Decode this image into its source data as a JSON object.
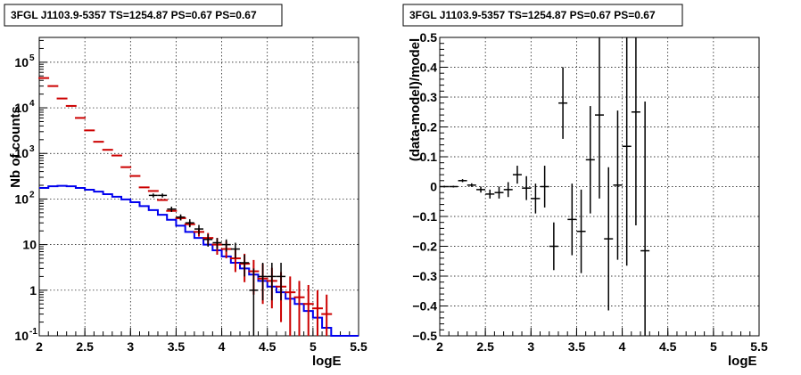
{
  "colors": {
    "data": "#000000",
    "model_errors": "#cc0000",
    "model_line": "#0000ee",
    "grid": "#000000"
  },
  "chart_data": [
    {
      "type": "line",
      "title": "3FGL J1103.9-5357 TS=1254.87 PS=0.67 PS=0.67",
      "xlabel": "logE",
      "ylabel": "Nb of counts",
      "xlim": [
        2,
        5.5
      ],
      "ylim": [
        0.1,
        350000
      ],
      "yscale": "log",
      "grid": true,
      "xticks": [
        "2",
        "2.5",
        "3",
        "3.5",
        "4",
        "4.5",
        "5",
        "5.5"
      ],
      "yticks": [
        {
          "value": 0.1,
          "label": "10",
          "exp": "-1"
        },
        {
          "value": 1,
          "label": "1",
          "exp": ""
        },
        {
          "value": 10,
          "label": "10",
          "exp": ""
        },
        {
          "value": 100,
          "label": "10",
          "exp": "2"
        },
        {
          "value": 1000,
          "label": "10",
          "exp": "3"
        },
        {
          "value": 10000,
          "label": "10",
          "exp": "4"
        },
        {
          "value": 100000,
          "label": "10",
          "exp": "5"
        }
      ],
      "series": [
        {
          "kind": "model_step",
          "bin_edges": [
            2.0,
            2.1,
            2.2,
            2.3,
            2.4,
            2.5,
            2.6,
            2.7,
            2.8,
            2.9,
            3.0,
            3.1,
            3.2,
            3.3,
            3.4,
            3.5,
            3.6,
            3.7,
            3.8,
            3.9,
            4.0,
            4.1,
            4.2,
            4.3,
            4.4,
            4.5,
            4.6,
            4.7,
            4.8,
            4.9,
            5.0,
            5.1,
            5.2,
            5.3,
            5.4,
            5.5
          ],
          "values": [
            175,
            190,
            195,
            190,
            175,
            160,
            145,
            128,
            112,
            98,
            85,
            70,
            57,
            45,
            35,
            26,
            19,
            14,
            10,
            7.5,
            5.5,
            4,
            3,
            2.2,
            1.6,
            1.2,
            0.9,
            0.65,
            0.5,
            0.35,
            0.25,
            0.15,
            0.1,
            0.1,
            0.1
          ]
        },
        {
          "kind": "model_with_errors",
          "x": [
            2.05,
            2.15,
            2.25,
            2.35,
            2.45,
            2.55,
            2.65,
            2.75,
            2.85,
            2.95,
            3.05,
            3.15,
            3.25,
            3.35,
            3.45,
            3.55,
            3.65,
            3.75,
            3.85,
            3.95,
            4.05,
            4.15,
            4.25,
            4.35,
            4.45,
            4.55,
            4.65,
            4.75,
            4.85,
            4.95,
            5.05,
            5.15
          ],
          "y": [
            45000,
            30000,
            16000,
            11000,
            6000,
            3200,
            1800,
            1200,
            900,
            500,
            320,
            180,
            150,
            95,
            55,
            38,
            28,
            19,
            14,
            10,
            8,
            5,
            3.8,
            2.6,
            1.8,
            1.6,
            1.2,
            0.9,
            0.7,
            0.5,
            0.4,
            0.3
          ],
          "err_lo": [
            0,
            0,
            0,
            0,
            0,
            0,
            0,
            0,
            0,
            0,
            0,
            0,
            0,
            0,
            0,
            4,
            3,
            4,
            4,
            4,
            3,
            2.5,
            2.3,
            1.8,
            1.3,
            1.2,
            1.0,
            0.8,
            0.62,
            0.45,
            0.37,
            0.28
          ],
          "err_hi": [
            0,
            0,
            0,
            0,
            0,
            0,
            0,
            0,
            0,
            0,
            0,
            0,
            0,
            0,
            0,
            5,
            4,
            4,
            4,
            4,
            4,
            3,
            2.5,
            2,
            2,
            1.5,
            1.3,
            1.1,
            0.9,
            0.8,
            0.6,
            0.5
          ]
        },
        {
          "kind": "data",
          "x": [
            3.25,
            3.35,
            3.45,
            3.55,
            3.65,
            3.75,
            3.85,
            3.95,
            4.05,
            4.15,
            4.25,
            4.35,
            4.45,
            4.55,
            4.65
          ],
          "y": [
            120,
            120,
            60,
            40,
            30,
            22,
            13,
            11,
            10,
            8,
            4,
            1,
            2,
            2,
            2
          ],
          "err_lo": [
            12,
            12,
            8,
            6,
            6,
            5,
            4,
            3,
            3,
            3,
            2,
            0.9,
            1.4,
            1.4,
            1.4
          ],
          "err_hi": [
            12,
            12,
            8,
            6,
            6,
            5,
            4,
            3,
            3,
            3,
            2,
            2,
            2,
            2,
            2
          ]
        }
      ]
    },
    {
      "type": "scatter",
      "title": "3FGL J1103.9-5357 TS=1254.87 PS=0.67 PS=0.67",
      "xlabel": "logE",
      "ylabel": "(data-model)/model",
      "xlim": [
        2,
        5.5
      ],
      "ylim": [
        -0.5,
        0.5
      ],
      "grid": true,
      "xticks": [
        "2",
        "2.5",
        "3",
        "3.5",
        "4",
        "4.5",
        "5",
        "5.5"
      ],
      "yticks": [
        "−0.5",
        "−0.4",
        "−0.3",
        "−0.2",
        "−0.1",
        "0",
        "0.1",
        "0.2",
        "0.3",
        "0.4",
        "0.5"
      ],
      "points": {
        "x": [
          2.05,
          2.15,
          2.25,
          2.35,
          2.45,
          2.55,
          2.65,
          2.75,
          2.85,
          2.95,
          3.05,
          3.15,
          3.25,
          3.35,
          3.45,
          3.55,
          3.65,
          3.75,
          3.85,
          3.95,
          4.05,
          4.15,
          4.25
        ],
        "y": [
          0.0,
          0.0,
          0.02,
          0.005,
          -0.01,
          -0.025,
          -0.02,
          -0.01,
          0.04,
          -0.005,
          -0.04,
          0.0,
          -0.2,
          0.28,
          -0.11,
          -0.15,
          0.09,
          0.24,
          -0.175,
          0.005,
          0.135,
          0.25,
          -0.215
        ],
        "err": [
          0.003,
          0.003,
          0.005,
          0.006,
          0.01,
          0.015,
          0.02,
          0.025,
          0.03,
          0.04,
          0.05,
          0.07,
          0.08,
          0.12,
          0.12,
          0.14,
          0.18,
          0.28,
          0.24,
          0.25,
          0.4,
          0.38,
          0.5
        ]
      }
    }
  ]
}
